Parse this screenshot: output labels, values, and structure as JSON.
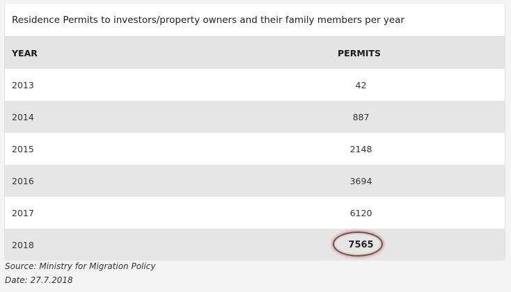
{
  "table": {
    "title": "Residence Permits to investors/property owners and their family members per year",
    "headers": {
      "year": "YEAR",
      "permits": "PERMITS"
    },
    "rows": [
      {
        "year": "2013",
        "permits": "42"
      },
      {
        "year": "2014",
        "permits": "887"
      },
      {
        "year": "2015",
        "permits": "2148"
      },
      {
        "year": "2016",
        "permits": "3694"
      },
      {
        "year": "2017",
        "permits": "6120"
      },
      {
        "year": "2018",
        "permits": "7565"
      }
    ]
  },
  "footer": {
    "source": "Source: Ministry for Migration Policy",
    "date": "Date: 27.7.2018"
  },
  "colors": {
    "header_bg": "#e4e4e4",
    "stripe_bg": "#e6e6e6",
    "highlight_ring": "#5a5a5a"
  }
}
